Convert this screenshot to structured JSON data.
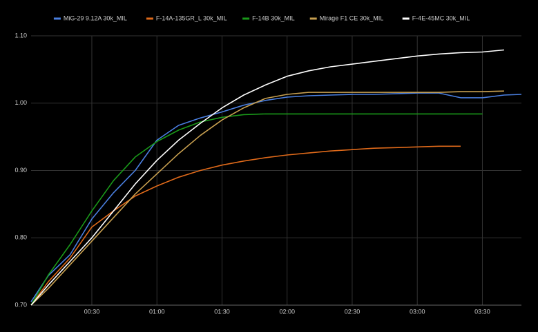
{
  "chart_data": {
    "type": "line",
    "x": [
      2,
      10,
      20,
      30,
      40,
      50,
      60,
      70,
      80,
      90,
      100,
      110,
      120,
      130,
      140,
      150,
      160,
      170,
      180,
      190,
      200,
      210,
      220,
      228
    ],
    "xlim": [
      2,
      228
    ],
    "xticks": [
      {
        "value": 30,
        "label": "00:30"
      },
      {
        "value": 60,
        "label": "01:00"
      },
      {
        "value": 90,
        "label": "01:30"
      },
      {
        "value": 120,
        "label": "02:00"
      },
      {
        "value": 150,
        "label": "02:30"
      },
      {
        "value": 180,
        "label": "03:00"
      },
      {
        "value": 210,
        "label": "03:30"
      }
    ],
    "ylim": [
      0.7,
      1.1
    ],
    "yticks": [
      {
        "value": 0.7,
        "label": "0.70"
      },
      {
        "value": 0.8,
        "label": "0.80"
      },
      {
        "value": 0.9,
        "label": "0.90"
      },
      {
        "value": 1.0,
        "label": "1.00"
      },
      {
        "value": 1.1,
        "label": "1.10"
      }
    ],
    "grid": true,
    "legend": "top",
    "series": [
      {
        "name": "MiG-29 9.12A 30k_MIL",
        "color": "#4a7fe0",
        "values": [
          0.705,
          0.744,
          0.775,
          0.828,
          0.867,
          0.9,
          0.945,
          0.967,
          0.978,
          0.987,
          0.997,
          1.004,
          1.009,
          1.011,
          1.012,
          1.013,
          1.013,
          1.014,
          1.015,
          1.015,
          1.008,
          1.008,
          1.012,
          1.013
        ]
      },
      {
        "name": "F-14A-135GR_L 30k_MIL",
        "color": "#e06a1a",
        "values": [
          0.7,
          0.735,
          0.77,
          0.816,
          0.84,
          0.862,
          0.877,
          0.89,
          0.9,
          0.908,
          0.914,
          0.919,
          0.923,
          0.926,
          0.929,
          0.931,
          0.933,
          0.934,
          0.935,
          0.936,
          0.936,
          null,
          null,
          null
        ]
      },
      {
        "name": "F-14B 30k_MIL",
        "color": "#1a9a1a",
        "values": [
          0.7,
          0.745,
          0.79,
          0.84,
          0.885,
          0.92,
          0.943,
          0.96,
          0.972,
          0.979,
          0.983,
          0.984,
          0.984,
          0.984,
          0.984,
          0.984,
          0.984,
          0.984,
          0.984,
          0.984,
          0.984,
          0.984,
          null,
          null
        ]
      },
      {
        "name": "Mirage F1 CE 30k_MIL",
        "color": "#c8a050",
        "values": [
          0.7,
          0.725,
          0.76,
          0.795,
          0.83,
          0.865,
          0.895,
          0.925,
          0.952,
          0.975,
          0.993,
          1.007,
          1.013,
          1.016,
          1.016,
          1.016,
          1.016,
          1.016,
          1.016,
          1.016,
          1.017,
          1.017,
          1.018,
          null
        ]
      },
      {
        "name": "F-4E-45MC 30k_MIL",
        "color": "#ffffff",
        "values": [
          0.7,
          0.73,
          0.765,
          0.8,
          0.84,
          0.88,
          0.915,
          0.945,
          0.97,
          0.993,
          1.012,
          1.027,
          1.04,
          1.048,
          1.054,
          1.058,
          1.062,
          1.066,
          1.07,
          1.073,
          1.075,
          1.076,
          1.079,
          null
        ]
      }
    ]
  }
}
